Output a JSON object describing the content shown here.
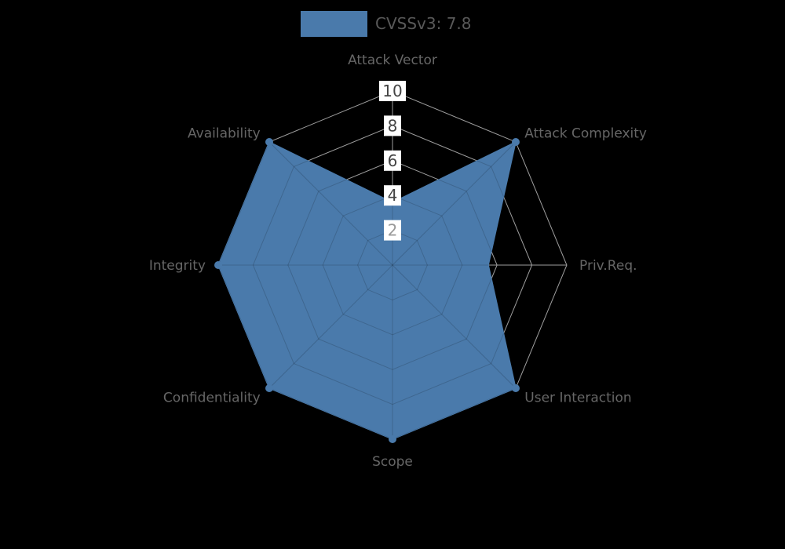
{
  "legend": {
    "label": "CVSSv3: 7.8",
    "swatch_color": "#4a7aab"
  },
  "chart_data": {
    "type": "radar",
    "title": "CVSSv3: 7.8",
    "categories": [
      "Attack Vector",
      "Attack Complexity",
      "Priv.Req.",
      "User Interaction",
      "Scope",
      "Confidentiality",
      "Integrity",
      "Availability"
    ],
    "series": [
      {
        "name": "CVSSv3: 7.8",
        "values": [
          3.6,
          10,
          5.5,
          10,
          10,
          10,
          10,
          10
        ]
      }
    ],
    "rlim": [
      0,
      10
    ],
    "rticks": [
      2,
      4,
      6,
      8,
      10
    ],
    "grid": true,
    "legend_position": "top-center",
    "colors": {
      "fill": "#4a7aab",
      "stroke": "#4a7aab",
      "grid": "#9e9e9e",
      "grid_inside": "rgba(0,0,0,0.16)",
      "axis_label": "#666666",
      "tick_text": "#444444",
      "tick_text_low": "#999999",
      "tick_box": "#ffffff",
      "legend_text": "#595959"
    }
  }
}
